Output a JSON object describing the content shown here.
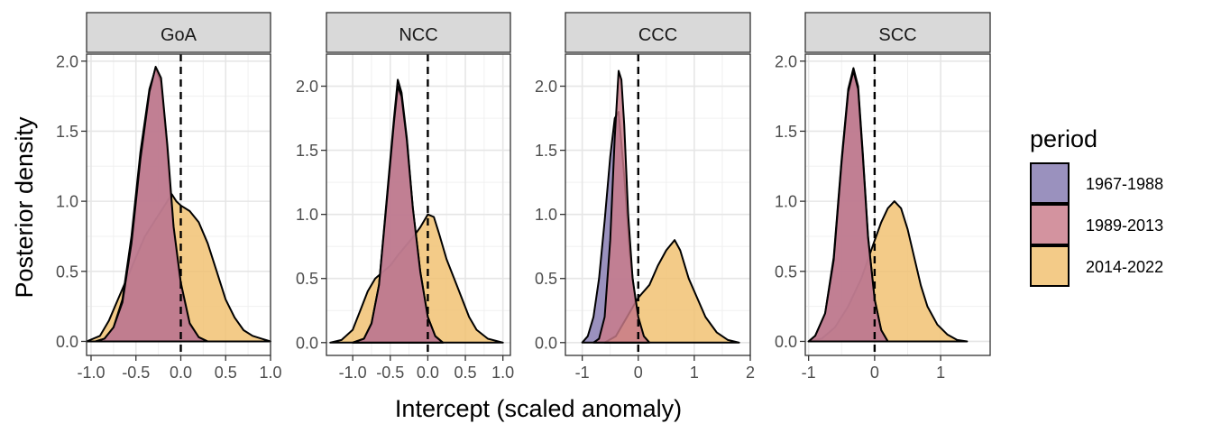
{
  "chart_data": {
    "type": "area",
    "subtype": "faceted density plot",
    "xlabel": "Intercept (scaled anomaly)",
    "ylabel": "Posterior density",
    "legend": {
      "title": "period",
      "position": "right",
      "entries": [
        {
          "name": "1967-1988",
          "color": "#8479B0"
        },
        {
          "name": "1989-2013",
          "color": "#C97B8A"
        },
        {
          "name": "2014-2022",
          "color": "#F0BF6E"
        }
      ]
    },
    "reference_line": {
      "x": 0,
      "style": "dashed"
    },
    "grid": true,
    "facets": [
      {
        "label": "GoA",
        "xlim": [
          -1.05,
          1.0
        ],
        "ylim": [
          -0.1,
          2.05
        ],
        "xticks": [
          -1.0,
          -0.5,
          0.0,
          0.5,
          1.0
        ],
        "xtick_labels": [
          "-1.0",
          "-0.5",
          "0.0",
          "0.5",
          "1.0"
        ],
        "yticks": [
          0.0,
          0.5,
          1.0,
          1.5,
          2.0
        ],
        "ytick_labels": [
          "0.0",
          "0.5",
          "1.0",
          "1.5",
          "2.0"
        ],
        "series": [
          {
            "name": "2014-2022",
            "points": [
              [
                -1.05,
                0.0
              ],
              [
                -0.9,
                0.04
              ],
              [
                -0.8,
                0.15
              ],
              [
                -0.7,
                0.3
              ],
              [
                -0.6,
                0.45
              ],
              [
                -0.5,
                0.6
              ],
              [
                -0.4,
                0.75
              ],
              [
                -0.3,
                0.85
              ],
              [
                -0.2,
                0.95
              ],
              [
                -0.1,
                1.05
              ],
              [
                -0.05,
                1.0
              ],
              [
                0.0,
                0.97
              ],
              [
                0.1,
                0.93
              ],
              [
                0.2,
                0.85
              ],
              [
                0.3,
                0.7
              ],
              [
                0.4,
                0.5
              ],
              [
                0.5,
                0.3
              ],
              [
                0.6,
                0.17
              ],
              [
                0.7,
                0.08
              ],
              [
                0.8,
                0.04
              ],
              [
                0.9,
                0.02
              ],
              [
                1.0,
                0.0
              ]
            ]
          },
          {
            "name": "1967-1988",
            "points": [
              [
                -0.95,
                0.0
              ],
              [
                -0.85,
                0.02
              ],
              [
                -0.75,
                0.1
              ],
              [
                -0.65,
                0.3
              ],
              [
                -0.55,
                0.75
              ],
              [
                -0.45,
                1.35
              ],
              [
                -0.35,
                1.8
              ],
              [
                -0.28,
                1.95
              ],
              [
                -0.22,
                1.85
              ],
              [
                -0.15,
                1.35
              ],
              [
                -0.08,
                0.8
              ],
              [
                0.0,
                0.4
              ],
              [
                0.1,
                0.12
              ],
              [
                0.2,
                0.03
              ],
              [
                0.3,
                0.0
              ]
            ]
          },
          {
            "name": "1989-2013",
            "points": [
              [
                -0.95,
                0.0
              ],
              [
                -0.85,
                0.02
              ],
              [
                -0.75,
                0.1
              ],
              [
                -0.65,
                0.28
              ],
              [
                -0.55,
                0.7
              ],
              [
                -0.45,
                1.3
              ],
              [
                -0.35,
                1.78
              ],
              [
                -0.28,
                1.96
              ],
              [
                -0.22,
                1.88
              ],
              [
                -0.15,
                1.4
              ],
              [
                -0.08,
                0.82
              ],
              [
                0.0,
                0.42
              ],
              [
                0.1,
                0.13
              ],
              [
                0.2,
                0.03
              ],
              [
                0.3,
                0.0
              ]
            ]
          }
        ]
      },
      {
        "label": "NCC",
        "xlim": [
          -1.35,
          1.1
        ],
        "ylim": [
          -0.1,
          2.25
        ],
        "xticks": [
          -1.0,
          -0.5,
          0.0,
          0.5,
          1.0
        ],
        "xtick_labels": [
          "-1.0",
          "-0.5",
          "0.0",
          "0.5",
          "1.0"
        ],
        "yticks": [
          0.0,
          0.5,
          1.0,
          1.5,
          2.0
        ],
        "ytick_labels": [
          "0.0",
          "0.5",
          "1.0",
          "1.5",
          "2.0"
        ],
        "series": [
          {
            "name": "2014-2022",
            "points": [
              [
                -1.3,
                0.0
              ],
              [
                -1.15,
                0.02
              ],
              [
                -1.0,
                0.1
              ],
              [
                -0.9,
                0.25
              ],
              [
                -0.8,
                0.4
              ],
              [
                -0.7,
                0.5
              ],
              [
                -0.6,
                0.55
              ],
              [
                -0.5,
                0.6
              ],
              [
                -0.4,
                0.68
              ],
              [
                -0.3,
                0.75
              ],
              [
                -0.2,
                0.82
              ],
              [
                -0.1,
                0.9
              ],
              [
                0.0,
                1.0
              ],
              [
                0.08,
                0.98
              ],
              [
                0.15,
                0.85
              ],
              [
                0.25,
                0.65
              ],
              [
                0.35,
                0.5
              ],
              [
                0.45,
                0.35
              ],
              [
                0.55,
                0.2
              ],
              [
                0.65,
                0.1
              ],
              [
                0.8,
                0.03
              ],
              [
                1.0,
                0.0
              ]
            ]
          },
          {
            "name": "1967-1988",
            "points": [
              [
                -1.0,
                0.0
              ],
              [
                -0.85,
                0.03
              ],
              [
                -0.75,
                0.15
              ],
              [
                -0.65,
                0.45
              ],
              [
                -0.55,
                1.1
              ],
              [
                -0.45,
                1.75
              ],
              [
                -0.4,
                2.05
              ],
              [
                -0.35,
                1.95
              ],
              [
                -0.28,
                1.6
              ],
              [
                -0.2,
                1.05
              ],
              [
                -0.1,
                0.55
              ],
              [
                0.0,
                0.2
              ],
              [
                0.1,
                0.05
              ],
              [
                0.2,
                0.0
              ]
            ]
          },
          {
            "name": "1989-2013",
            "points": [
              [
                -1.0,
                0.0
              ],
              [
                -0.85,
                0.03
              ],
              [
                -0.75,
                0.15
              ],
              [
                -0.65,
                0.45
              ],
              [
                -0.55,
                1.08
              ],
              [
                -0.45,
                1.72
              ],
              [
                -0.4,
                2.0
              ],
              [
                -0.35,
                1.92
              ],
              [
                -0.28,
                1.58
              ],
              [
                -0.2,
                1.05
              ],
              [
                -0.1,
                0.55
              ],
              [
                0.0,
                0.2
              ],
              [
                0.1,
                0.05
              ],
              [
                0.2,
                0.0
              ]
            ]
          }
        ]
      },
      {
        "label": "CCC",
        "xlim": [
          -1.3,
          2.0
        ],
        "ylim": [
          -0.1,
          2.25
        ],
        "xticks": [
          -1,
          0,
          1,
          2
        ],
        "xtick_labels": [
          "-1",
          "0",
          "1",
          "2"
        ],
        "yticks": [
          0.0,
          0.5,
          1.0,
          1.5,
          2.0
        ],
        "ytick_labels": [
          "0.0",
          "0.5",
          "1.0",
          "1.5",
          "2.0"
        ],
        "series": [
          {
            "name": "1967-1988",
            "points": [
              [
                -1.0,
                0.0
              ],
              [
                -0.9,
                0.05
              ],
              [
                -0.8,
                0.2
              ],
              [
                -0.7,
                0.5
              ],
              [
                -0.6,
                0.95
              ],
              [
                -0.5,
                1.45
              ],
              [
                -0.42,
                1.75
              ],
              [
                -0.35,
                1.8
              ],
              [
                -0.25,
                1.3
              ],
              [
                -0.15,
                0.7
              ],
              [
                -0.05,
                0.3
              ],
              [
                0.05,
                0.08
              ],
              [
                0.15,
                0.0
              ]
            ]
          },
          {
            "name": "2014-2022",
            "points": [
              [
                -0.6,
                0.0
              ],
              [
                -0.4,
                0.05
              ],
              [
                -0.2,
                0.2
              ],
              [
                0.0,
                0.35
              ],
              [
                0.2,
                0.45
              ],
              [
                0.35,
                0.6
              ],
              [
                0.5,
                0.72
              ],
              [
                0.65,
                0.8
              ],
              [
                0.75,
                0.72
              ],
              [
                0.9,
                0.5
              ],
              [
                1.05,
                0.35
              ],
              [
                1.2,
                0.2
              ],
              [
                1.4,
                0.08
              ],
              [
                1.6,
                0.02
              ],
              [
                1.8,
                0.0
              ]
            ]
          },
          {
            "name": "1989-2013",
            "points": [
              [
                -0.8,
                0.0
              ],
              [
                -0.7,
                0.03
              ],
              [
                -0.6,
                0.2
              ],
              [
                -0.5,
                0.8
              ],
              [
                -0.42,
                1.6
              ],
              [
                -0.35,
                2.12
              ],
              [
                -0.3,
                2.05
              ],
              [
                -0.25,
                1.7
              ],
              [
                -0.18,
                1.0
              ],
              [
                -0.1,
                0.5
              ],
              [
                0.0,
                0.2
              ],
              [
                0.1,
                0.05
              ],
              [
                0.2,
                0.0
              ]
            ]
          }
        ]
      },
      {
        "label": "SCC",
        "xlim": [
          -1.05,
          1.75
        ],
        "ylim": [
          -0.1,
          2.05
        ],
        "xticks": [
          -1,
          0,
          1
        ],
        "xtick_labels": [
          "-1",
          "0",
          "1"
        ],
        "yticks": [
          0.0,
          0.5,
          1.0,
          1.5,
          2.0
        ],
        "ytick_labels": [
          "0.0",
          "0.5",
          "1.0",
          "1.5",
          "2.0"
        ],
        "series": [
          {
            "name": "2014-2022",
            "points": [
              [
                -1.0,
                0.0
              ],
              [
                -0.8,
                0.02
              ],
              [
                -0.6,
                0.1
              ],
              [
                -0.4,
                0.25
              ],
              [
                -0.2,
                0.45
              ],
              [
                0.0,
                0.72
              ],
              [
                0.1,
                0.85
              ],
              [
                0.2,
                0.95
              ],
              [
                0.3,
                1.0
              ],
              [
                0.4,
                0.95
              ],
              [
                0.5,
                0.8
              ],
              [
                0.6,
                0.6
              ],
              [
                0.7,
                0.4
              ],
              [
                0.8,
                0.25
              ],
              [
                0.95,
                0.12
              ],
              [
                1.1,
                0.05
              ],
              [
                1.25,
                0.01
              ],
              [
                1.4,
                0.0
              ]
            ]
          },
          {
            "name": "1967-1988",
            "points": [
              [
                -1.0,
                0.0
              ],
              [
                -0.9,
                0.04
              ],
              [
                -0.75,
                0.2
              ],
              [
                -0.62,
                0.6
              ],
              [
                -0.5,
                1.3
              ],
              [
                -0.4,
                1.8
              ],
              [
                -0.32,
                1.95
              ],
              [
                -0.25,
                1.82
              ],
              [
                -0.18,
                1.35
              ],
              [
                -0.1,
                0.75
              ],
              [
                0.0,
                0.3
              ],
              [
                0.1,
                0.08
              ],
              [
                0.2,
                0.0
              ]
            ]
          },
          {
            "name": "1989-2013",
            "points": [
              [
                -1.0,
                0.0
              ],
              [
                -0.9,
                0.04
              ],
              [
                -0.75,
                0.2
              ],
              [
                -0.62,
                0.58
              ],
              [
                -0.5,
                1.28
              ],
              [
                -0.4,
                1.78
              ],
              [
                -0.32,
                1.93
              ],
              [
                -0.25,
                1.8
              ],
              [
                -0.18,
                1.33
              ],
              [
                -0.1,
                0.74
              ],
              [
                0.0,
                0.3
              ],
              [
                0.1,
                0.08
              ],
              [
                0.2,
                0.0
              ]
            ]
          }
        ]
      }
    ]
  }
}
